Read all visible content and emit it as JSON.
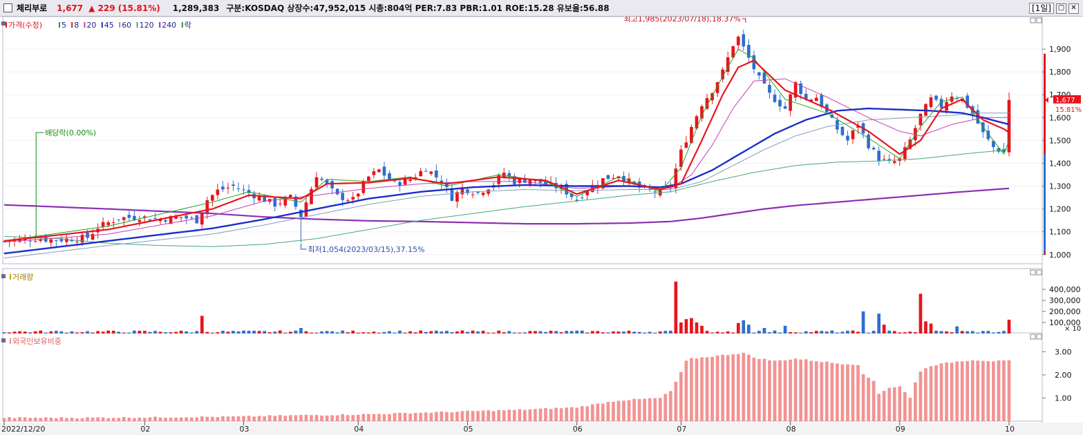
{
  "header": {
    "name": "체리부로",
    "price": "1,677",
    "change": "▲ 229 (15.81%)",
    "volume": "1,289,383",
    "info": "구분:KOSDAQ 상장수:47,952,015 시총:804억 PER:7.83 PBR:1.01 ROE:15.28 유보율:56.88",
    "period": "[1일]",
    "buttons": [
      "▢",
      "✕"
    ]
  },
  "colors": {
    "up": "#e8141b",
    "down": "#2d6fcf",
    "ma5": "#21a021",
    "ma8": "#e8141b",
    "ma20": "#c23fb2",
    "ma45": "#1b2fc8",
    "ma60": "#7f9cc0",
    "ma120": "#46a87c",
    "ma240": "#8b2fb3",
    "foreign": "#f29393",
    "price_tag": "#e8141b"
  },
  "chart_data": [
    {
      "type": "candlestick",
      "legend": [
        {
          "label": "가격(수정)",
          "color": "#e8141b"
        },
        {
          "label": "5",
          "color": "#21a021"
        },
        {
          "label": "8",
          "color": "#e8141b"
        },
        {
          "label": "20",
          "color": "#c23fb2"
        },
        {
          "label": "45",
          "color": "#1b2fc8"
        },
        {
          "label": "60",
          "color": "#7f9cc0"
        },
        {
          "label": "120",
          "color": "#46a87c"
        },
        {
          "label": "240",
          "color": "#8b2fb3"
        },
        {
          "label": "락",
          "color": "#21a021"
        }
      ],
      "ylim": [
        960,
        2000
      ],
      "yticks": [
        1000,
        1100,
        1200,
        1300,
        1400,
        1500,
        1600,
        1700,
        1800,
        1900
      ],
      "ytick_labels": [
        "1,000",
        "1,100",
        "1,200",
        "1,300",
        "1,400",
        "1,500",
        "1,600",
        "1,700",
        "1,800",
        "1,900"
      ],
      "x_labels": [
        "2022/12/20",
        "02",
        "03",
        "04",
        "05",
        "06",
        "07",
        "08",
        "09",
        "10"
      ],
      "x_label_positions": [
        0,
        27,
        46,
        68,
        89,
        110,
        130,
        151,
        172,
        193
      ],
      "n_bars": 194,
      "key_points": [
        [
          0,
          1058
        ],
        [
          2,
          1066
        ],
        [
          6,
          1070
        ],
        [
          10,
          1064
        ],
        [
          16,
          1075
        ],
        [
          18,
          1120
        ],
        [
          22,
          1160
        ],
        [
          26,
          1165
        ],
        [
          30,
          1155
        ],
        [
          34,
          1165
        ],
        [
          37,
          1150
        ],
        [
          39,
          1240
        ],
        [
          41,
          1280
        ],
        [
          44,
          1300
        ],
        [
          47,
          1270
        ],
        [
          50,
          1240
        ],
        [
          52,
          1220
        ],
        [
          55,
          1250
        ],
        [
          57,
          1170
        ],
        [
          60,
          1350
        ],
        [
          64,
          1255
        ],
        [
          67,
          1240
        ],
        [
          70,
          1340
        ],
        [
          72,
          1370
        ],
        [
          75,
          1310
        ],
        [
          78,
          1330
        ],
        [
          81,
          1380
        ],
        [
          84,
          1320
        ],
        [
          86,
          1250
        ],
        [
          88,
          1290
        ],
        [
          91,
          1270
        ],
        [
          94,
          1310
        ],
        [
          96,
          1360
        ],
        [
          98,
          1320
        ],
        [
          101,
          1330
        ],
        [
          104,
          1310
        ],
        [
          107,
          1290
        ],
        [
          110,
          1240
        ],
        [
          112,
          1285
        ],
        [
          115,
          1330
        ],
        [
          118,
          1350
        ],
        [
          120,
          1320
        ],
        [
          123,
          1280
        ],
        [
          126,
          1275
        ],
        [
          128,
          1300
        ],
        [
          130,
          1450
        ],
        [
          132,
          1560
        ],
        [
          134,
          1660
        ],
        [
          136,
          1720
        ],
        [
          138,
          1800
        ],
        [
          140,
          1920
        ],
        [
          141,
          1950
        ],
        [
          143,
          1860
        ],
        [
          145,
          1770
        ],
        [
          147,
          1700
        ],
        [
          150,
          1640
        ],
        [
          152,
          1750
        ],
        [
          154,
          1680
        ],
        [
          156,
          1690
        ],
        [
          158,
          1620
        ],
        [
          160,
          1550
        ],
        [
          162,
          1500
        ],
        [
          164,
          1570
        ],
        [
          166,
          1480
        ],
        [
          168,
          1420
        ],
        [
          170,
          1400
        ],
        [
          172,
          1415
        ],
        [
          174,
          1500
        ],
        [
          176,
          1610
        ],
        [
          178,
          1680
        ],
        [
          180,
          1650
        ],
        [
          182,
          1700
        ],
        [
          184,
          1680
        ],
        [
          186,
          1620
        ],
        [
          188,
          1530
        ],
        [
          190,
          1470
        ],
        [
          192,
          1448
        ],
        [
          193,
          1677
        ]
      ],
      "ma5_points": [
        [
          0,
          1060
        ],
        [
          20,
          1125
        ],
        [
          40,
          1230
        ],
        [
          47,
          1275
        ],
        [
          57,
          1230
        ],
        [
          62,
          1330
        ],
        [
          70,
          1320
        ],
        [
          78,
          1340
        ],
        [
          85,
          1300
        ],
        [
          95,
          1350
        ],
        [
          104,
          1320
        ],
        [
          110,
          1255
        ],
        [
          118,
          1340
        ],
        [
          126,
          1275
        ],
        [
          130,
          1380
        ],
        [
          134,
          1610
        ],
        [
          138,
          1780
        ],
        [
          141,
          1900
        ],
        [
          144,
          1860
        ],
        [
          150,
          1680
        ],
        [
          158,
          1620
        ],
        [
          166,
          1510
        ],
        [
          172,
          1420
        ],
        [
          176,
          1560
        ],
        [
          180,
          1670
        ],
        [
          184,
          1690
        ],
        [
          188,
          1560
        ],
        [
          192,
          1440
        ],
        [
          193,
          1500
        ]
      ],
      "ma8_points": [
        [
          0,
          1060
        ],
        [
          20,
          1110
        ],
        [
          40,
          1200
        ],
        [
          47,
          1260
        ],
        [
          57,
          1245
        ],
        [
          62,
          1310
        ],
        [
          70,
          1315
        ],
        [
          78,
          1335
        ],
        [
          85,
          1310
        ],
        [
          95,
          1340
        ],
        [
          104,
          1325
        ],
        [
          110,
          1265
        ],
        [
          118,
          1325
        ],
        [
          126,
          1285
        ],
        [
          130,
          1310
        ],
        [
          134,
          1500
        ],
        [
          138,
          1700
        ],
        [
          141,
          1820
        ],
        [
          144,
          1850
        ],
        [
          150,
          1720
        ],
        [
          158,
          1640
        ],
        [
          166,
          1540
        ],
        [
          172,
          1440
        ],
        [
          176,
          1500
        ],
        [
          180,
          1640
        ],
        [
          184,
          1680
        ],
        [
          188,
          1590
        ],
        [
          192,
          1550
        ],
        [
          193,
          1535
        ]
      ],
      "ma20_points": [
        [
          0,
          1055
        ],
        [
          20,
          1090
        ],
        [
          40,
          1170
        ],
        [
          50,
          1235
        ],
        [
          60,
          1260
        ],
        [
          70,
          1290
        ],
        [
          80,
          1310
        ],
        [
          90,
          1320
        ],
        [
          100,
          1320
        ],
        [
          110,
          1290
        ],
        [
          120,
          1300
        ],
        [
          128,
          1290
        ],
        [
          132,
          1350
        ],
        [
          136,
          1480
        ],
        [
          140,
          1640
        ],
        [
          144,
          1760
        ],
        [
          150,
          1770
        ],
        [
          158,
          1690
        ],
        [
          166,
          1600
        ],
        [
          172,
          1540
        ],
        [
          176,
          1520
        ],
        [
          182,
          1570
        ],
        [
          188,
          1600
        ],
        [
          193,
          1600
        ]
      ],
      "ma45_points": [
        [
          0,
          1005
        ],
        [
          20,
          1060
        ],
        [
          40,
          1115
        ],
        [
          50,
          1155
        ],
        [
          60,
          1200
        ],
        [
          70,
          1245
        ],
        [
          80,
          1275
        ],
        [
          90,
          1295
        ],
        [
          100,
          1305
        ],
        [
          110,
          1300
        ],
        [
          120,
          1300
        ],
        [
          126,
          1295
        ],
        [
          130,
          1310
        ],
        [
          136,
          1370
        ],
        [
          142,
          1450
        ],
        [
          148,
          1530
        ],
        [
          154,
          1590
        ],
        [
          160,
          1630
        ],
        [
          166,
          1640
        ],
        [
          172,
          1635
        ],
        [
          178,
          1630
        ],
        [
          184,
          1620
        ],
        [
          188,
          1600
        ],
        [
          193,
          1570
        ]
      ],
      "ma60_points": [
        [
          0,
          985
        ],
        [
          20,
          1040
        ],
        [
          40,
          1090
        ],
        [
          50,
          1130
        ],
        [
          60,
          1175
        ],
        [
          70,
          1220
        ],
        [
          80,
          1255
        ],
        [
          90,
          1275
        ],
        [
          100,
          1285
        ],
        [
          110,
          1280
        ],
        [
          120,
          1285
        ],
        [
          128,
          1285
        ],
        [
          134,
          1320
        ],
        [
          140,
          1390
        ],
        [
          146,
          1460
        ],
        [
          152,
          1520
        ],
        [
          158,
          1560
        ],
        [
          166,
          1590
        ],
        [
          174,
          1600
        ],
        [
          182,
          1610
        ],
        [
          188,
          1620
        ],
        [
          193,
          1620
        ]
      ],
      "ma120_points": [
        [
          0,
          1080
        ],
        [
          10,
          1070
        ],
        [
          20,
          1050
        ],
        [
          30,
          1040
        ],
        [
          40,
          1035
        ],
        [
          50,
          1045
        ],
        [
          60,
          1070
        ],
        [
          70,
          1110
        ],
        [
          80,
          1150
        ],
        [
          90,
          1180
        ],
        [
          100,
          1210
        ],
        [
          110,
          1235
        ],
        [
          120,
          1260
        ],
        [
          128,
          1275
        ],
        [
          136,
          1320
        ],
        [
          144,
          1360
        ],
        [
          152,
          1390
        ],
        [
          160,
          1405
        ],
        [
          168,
          1410
        ],
        [
          176,
          1420
        ],
        [
          184,
          1440
        ],
        [
          193,
          1460
        ]
      ],
      "ma240_points": [
        [
          0,
          1218
        ],
        [
          20,
          1200
        ],
        [
          40,
          1180
        ],
        [
          50,
          1165
        ],
        [
          60,
          1155
        ],
        [
          70,
          1148
        ],
        [
          80,
          1145
        ],
        [
          90,
          1140
        ],
        [
          100,
          1135
        ],
        [
          110,
          1135
        ],
        [
          120,
          1138
        ],
        [
          128,
          1145
        ],
        [
          134,
          1160
        ],
        [
          140,
          1180
        ],
        [
          146,
          1200
        ],
        [
          152,
          1215
        ],
        [
          160,
          1230
        ],
        [
          168,
          1245
        ],
        [
          176,
          1260
        ],
        [
          184,
          1275
        ],
        [
          193,
          1290
        ]
      ],
      "annotations": [
        {
          "text": "최고1,985(2023/07/18),18.37%",
          "bar": 142,
          "value": 1985
        },
        {
          "text": "최저1,054(2023/03/15),37.15%",
          "bar": 57,
          "value": 1054
        },
        {
          "text": "배당락(0.00%)",
          "bar": 6,
          "value": 1080
        }
      ],
      "last_price_tag": {
        "price": "1,677",
        "pct": "15.81%"
      }
    },
    {
      "type": "bar",
      "title": "거래량",
      "ylim": [
        0,
        500000
      ],
      "yticks": [
        100000,
        200000,
        300000,
        400000
      ],
      "ytick_labels": [
        "100,000",
        "200,000",
        "300,000",
        "400,000"
      ],
      "unit_label": "× 10",
      "spikes": [
        {
          "bar": 38,
          "value": 160000
        },
        {
          "bar": 57,
          "value": 50000
        },
        {
          "bar": 129,
          "value": 470000
        },
        {
          "bar": 130,
          "value": 100000
        },
        {
          "bar": 131,
          "value": 130000
        },
        {
          "bar": 132,
          "value": 140000
        },
        {
          "bar": 133,
          "value": 100000
        },
        {
          "bar": 134,
          "value": 70000
        },
        {
          "bar": 141,
          "value": 95000
        },
        {
          "bar": 142,
          "value": 120000
        },
        {
          "bar": 143,
          "value": 80000
        },
        {
          "bar": 146,
          "value": 50000
        },
        {
          "bar": 150,
          "value": 70000
        },
        {
          "bar": 165,
          "value": 200000
        },
        {
          "bar": 168,
          "value": 180000
        },
        {
          "bar": 169,
          "value": 80000
        },
        {
          "bar": 176,
          "value": 360000
        },
        {
          "bar": 177,
          "value": 110000
        },
        {
          "bar": 178,
          "value": 90000
        },
        {
          "bar": 183,
          "value": 65000
        },
        {
          "bar": 193,
          "value": 125000
        }
      ]
    },
    {
      "type": "bar",
      "title": "외국인보유비중",
      "ylim": [
        0,
        3.4
      ],
      "yticks": [
        1.0,
        2.0,
        3.0
      ],
      "ytick_labels": [
        "1.00",
        "2.00",
        "3.00"
      ],
      "key_points": [
        [
          0,
          0.15
        ],
        [
          15,
          0.15
        ],
        [
          30,
          0.17
        ],
        [
          45,
          0.2
        ],
        [
          55,
          0.25
        ],
        [
          70,
          0.3
        ],
        [
          85,
          0.4
        ],
        [
          100,
          0.5
        ],
        [
          110,
          0.6
        ],
        [
          118,
          0.9
        ],
        [
          122,
          0.95
        ],
        [
          126,
          1.0
        ],
        [
          128,
          1.3
        ],
        [
          130,
          2.1
        ],
        [
          131,
          2.6
        ],
        [
          132,
          2.7
        ],
        [
          136,
          2.8
        ],
        [
          140,
          2.9
        ],
        [
          142,
          2.95
        ],
        [
          144,
          2.75
        ],
        [
          148,
          2.6
        ],
        [
          152,
          2.7
        ],
        [
          156,
          2.6
        ],
        [
          160,
          2.5
        ],
        [
          164,
          2.45
        ],
        [
          165,
          2.0
        ],
        [
          167,
          1.75
        ],
        [
          168,
          1.2
        ],
        [
          170,
          1.45
        ],
        [
          172,
          1.5
        ],
        [
          174,
          1.0
        ],
        [
          175,
          1.7
        ],
        [
          176,
          2.15
        ],
        [
          178,
          2.4
        ],
        [
          182,
          2.55
        ],
        [
          186,
          2.65
        ],
        [
          190,
          2.6
        ],
        [
          193,
          2.6
        ]
      ]
    }
  ]
}
